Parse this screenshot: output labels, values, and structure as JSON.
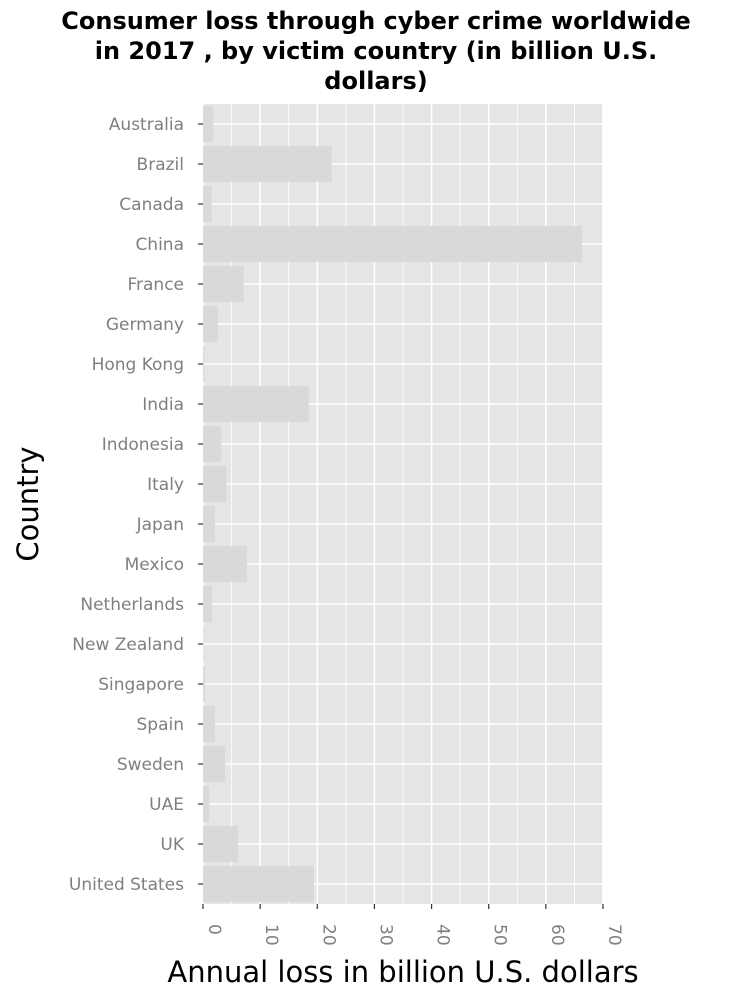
{
  "chart_data": {
    "type": "bar",
    "orientation": "horizontal",
    "title": "Consumer loss through cyber crime worldwide in 2017 , by victim country (in billion U.S. dollars)",
    "title_lines": [
      "Consumer loss through cyber crime worldwide",
      "in 2017 , by victim country (in billion U.S.",
      "dollars)"
    ],
    "xlabel": "Annual loss in billion U.S. dollars",
    "ylabel": "Country",
    "xlim": [
      0,
      70
    ],
    "x_ticks": [
      "0",
      "10",
      "20",
      "30",
      "40",
      "50",
      "60",
      "70"
    ],
    "grid": true,
    "categories": [
      "Australia",
      "Brazil",
      "Canada",
      "China",
      "France",
      "Germany",
      "Hong Kong",
      "India",
      "Indonesia",
      "Italy",
      "Japan",
      "Mexico",
      "Netherlands",
      "New Zealand",
      "Singapore",
      "Spain",
      "Sweden",
      "UAE",
      "UK",
      "United States"
    ],
    "values": [
      1.8,
      22.5,
      1.5,
      66.3,
      7.1,
      2.6,
      0.2,
      18.5,
      3.2,
      4.1,
      2.1,
      7.7,
      1.6,
      0.1,
      0.3,
      2.1,
      3.9,
      1.1,
      6.1,
      19.4
    ],
    "colors": {
      "panel": "#e5e5e5",
      "bar": "#d9d9d9",
      "grid": "#ffffff",
      "tick_label": "#7f7f7f",
      "tick_mark": "#333333",
      "text": "#000000"
    }
  }
}
